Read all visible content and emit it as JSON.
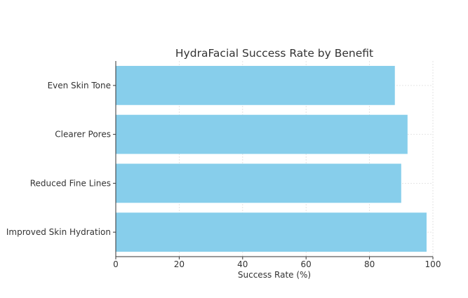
{
  "chart_data": {
    "type": "bar",
    "orientation": "horizontal",
    "title": "HydraFacial Success Rate by Benefit",
    "xlabel": "Success Rate (%)",
    "ylabel": "",
    "categories": [
      "Improved Skin Hydration",
      "Reduced Fine Lines",
      "Clearer Pores",
      "Even Skin Tone"
    ],
    "values": [
      98,
      90,
      92,
      88
    ],
    "xlim": [
      0,
      100
    ],
    "xticks": [
      "0",
      "20",
      "40",
      "60",
      "80",
      "100"
    ],
    "grid": true,
    "bar_color": "#87CEEB"
  }
}
